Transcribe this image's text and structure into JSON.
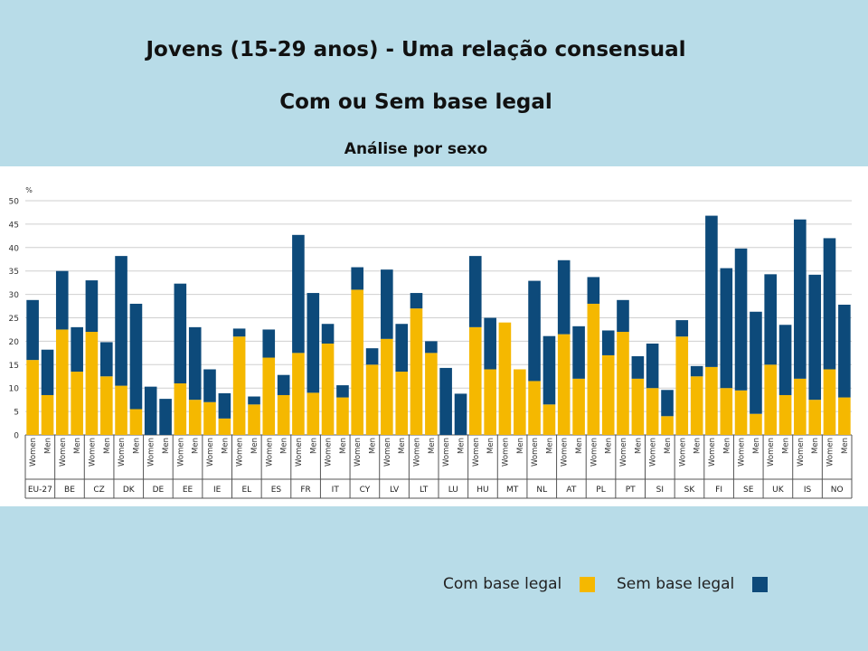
{
  "slide": {
    "title": "Jovens (15-29 anos) -  Uma relação consensual",
    "subtitle": "Com  ou Sem base legal",
    "subtitle2": "Análise por sexo"
  },
  "legend": {
    "com_label": "Com base  legal",
    "sem_label": "Sem base  legal"
  },
  "colors": {
    "com": "#f5b800",
    "sem": "#0d4a7a",
    "grid": "#cfcfcf",
    "axis": "#555555"
  },
  "chart_data": {
    "type": "bar",
    "stacked": true,
    "ylabel": "%",
    "ylim": [
      0,
      50
    ],
    "yticks": [
      0,
      5,
      10,
      15,
      20,
      25,
      30,
      35,
      40,
      45,
      50
    ],
    "grid": true,
    "sub_labels": [
      "Women",
      "Men"
    ],
    "categories": [
      "EU-27",
      "BE",
      "CZ",
      "DK",
      "DE",
      "EE",
      "IE",
      "EL",
      "ES",
      "FR",
      "IT",
      "CY",
      "LV",
      "LT",
      "LU",
      "HU",
      "MT",
      "NL",
      "AT",
      "PL",
      "PT",
      "SI",
      "SK",
      "FI",
      "SE",
      "UK",
      "IS",
      "NO"
    ],
    "series": [
      {
        "name": "Com base  legal",
        "values": [
          [
            16,
            8.5
          ],
          [
            22.5,
            13.5
          ],
          [
            22,
            12.5
          ],
          [
            10.5,
            5.5
          ],
          [
            0,
            0
          ],
          [
            11,
            7.5
          ],
          [
            7,
            3.5
          ],
          [
            21,
            6.5
          ],
          [
            16.5,
            8.5
          ],
          [
            17.5,
            9
          ],
          [
            19.5,
            8
          ],
          [
            31,
            15
          ],
          [
            20.5,
            13.5
          ],
          [
            27,
            17.5
          ],
          [
            0,
            0
          ],
          [
            23,
            14
          ],
          [
            24,
            14
          ],
          [
            11.5,
            6.5
          ],
          [
            21.5,
            12
          ],
          [
            28,
            17
          ],
          [
            22,
            12
          ],
          [
            10,
            4
          ],
          [
            21,
            12.5
          ],
          [
            14.5,
            10
          ],
          [
            9.5,
            4.5
          ],
          [
            15,
            8.5
          ],
          [
            12,
            7.5
          ],
          [
            14,
            8
          ]
        ]
      },
      {
        "name": "Sem base  legal",
        "values": [
          [
            12.8,
            9.7
          ],
          [
            12.5,
            9.5
          ],
          [
            11,
            7.3
          ],
          [
            27.7,
            22.5
          ],
          [
            10.3,
            7.7
          ],
          [
            21.3,
            15.5
          ],
          [
            7,
            5.4
          ],
          [
            1.7,
            1.7
          ],
          [
            6,
            4.3
          ],
          [
            25.2,
            21.3
          ],
          [
            4.2,
            2.6
          ],
          [
            4.8,
            3.5
          ],
          [
            14.8,
            10.2
          ],
          [
            3.3,
            2.5
          ],
          [
            14.3,
            8.8
          ],
          [
            15.2,
            11
          ],
          [
            0,
            0
          ],
          [
            21.4,
            14.6
          ],
          [
            15.8,
            11.2
          ],
          [
            5.7,
            5.3
          ],
          [
            6.8,
            4.8
          ],
          [
            9.5,
            5.6
          ],
          [
            3.5,
            2.2
          ],
          [
            32.3,
            25.6
          ],
          [
            30.3,
            21.8
          ],
          [
            19.3,
            15
          ],
          [
            34,
            26.7
          ],
          [
            28,
            19.8
          ]
        ]
      }
    ]
  }
}
